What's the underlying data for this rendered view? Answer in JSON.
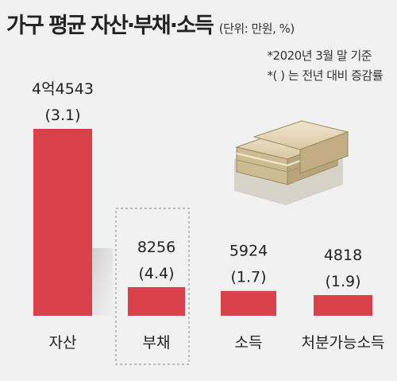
{
  "title": "가구 평균 자산·부채·소득",
  "unit": "(단위: 만원, %)",
  "notes": [
    "*2020년 3월 말 기준",
    "*( ) 는 전년 대비 증감률"
  ],
  "colors": {
    "bar": "#d8414a",
    "background": "#f1f1f1"
  },
  "chart_data": {
    "type": "bar",
    "categories": [
      "자산",
      "부채",
      "소득",
      "처분가능소득"
    ],
    "values": [
      44543,
      8256,
      5924,
      4818
    ],
    "value_labels": [
      "4억4543",
      "8256",
      "5924",
      "4818"
    ],
    "change_labels": [
      "(3.1)",
      "(4.4)",
      "(1.7)",
      "(1.9)"
    ]
  }
}
